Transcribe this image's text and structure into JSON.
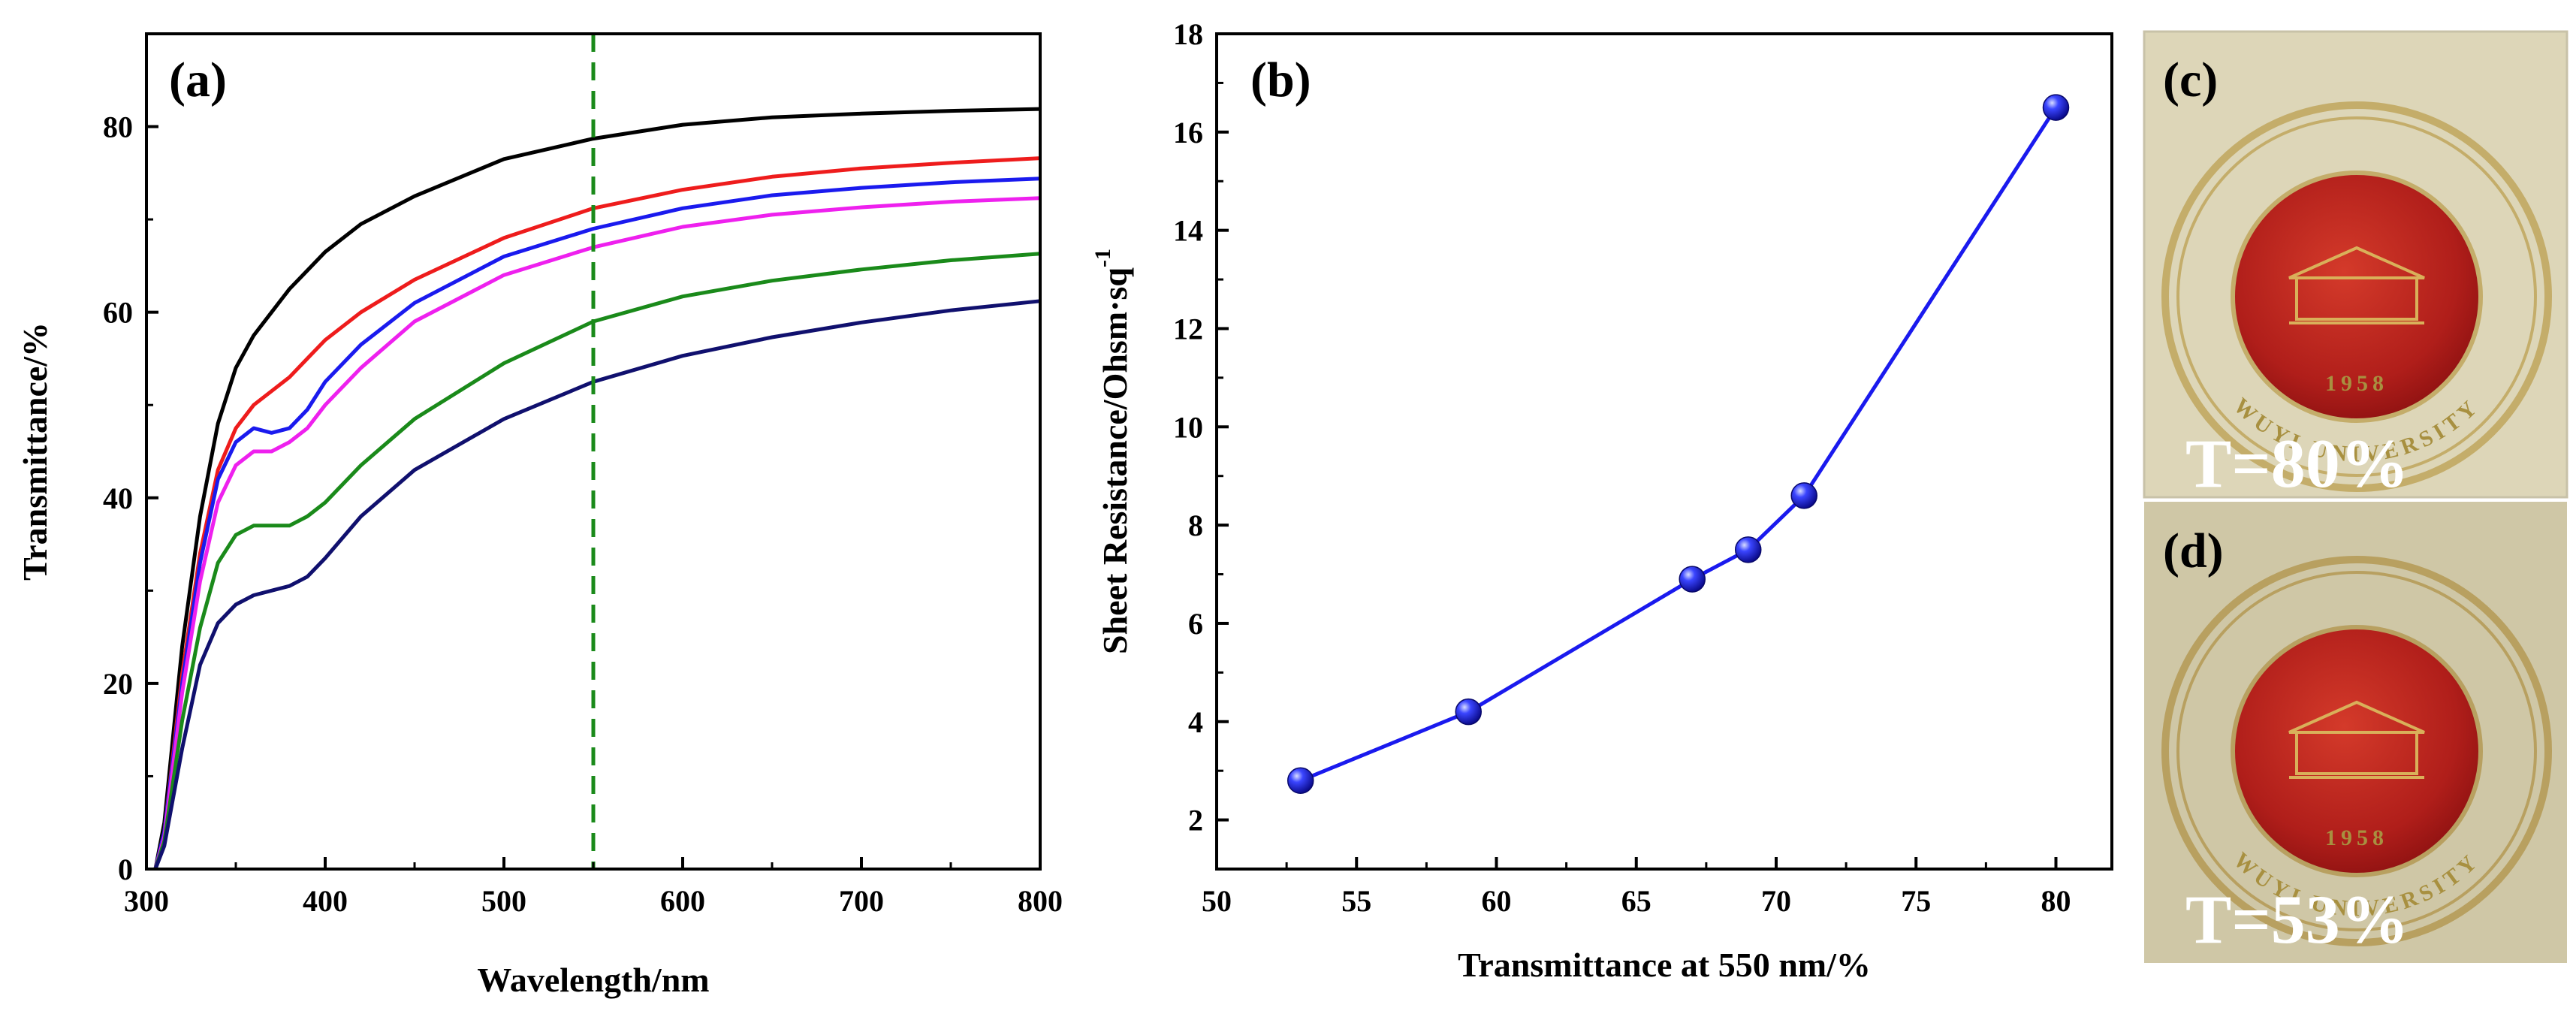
{
  "chart_data": [
    {
      "panel": "(a)",
      "type": "line",
      "xlabel": "Wavelength/nm",
      "ylabel": "Transmittance/%",
      "xlim": [
        300,
        800
      ],
      "ylim": [
        0,
        90
      ],
      "xticks": [
        300,
        400,
        500,
        600,
        700,
        800
      ],
      "yticks": [
        0,
        20,
        40,
        60,
        80
      ],
      "grid": false,
      "reference_line": {
        "x": 550,
        "style": "dashed",
        "color": "#1a8a1a"
      },
      "x": [
        305,
        310,
        320,
        330,
        340,
        350,
        360,
        370,
        380,
        390,
        400,
        420,
        450,
        500,
        550,
        600,
        650,
        700,
        750,
        800
      ],
      "series": [
        {
          "color": "#000000",
          "values": [
            0,
            5,
            24,
            38,
            48,
            54,
            57.5,
            60,
            62.5,
            64.5,
            66.5,
            69.5,
            72.5,
            76.5,
            78.7,
            80.2,
            81,
            81.4,
            81.7,
            81.9
          ]
        },
        {
          "color": "#ee1c1c",
          "values": [
            0,
            4,
            21,
            34,
            43,
            47.5,
            50,
            51.5,
            53,
            55,
            57,
            60,
            63.5,
            68,
            71.2,
            73.2,
            74.6,
            75.5,
            76.1,
            76.6
          ]
        },
        {
          "color": "#1a1aee",
          "values": [
            0,
            4,
            20,
            33,
            42,
            46,
            47.5,
            47,
            47.5,
            49.5,
            52.5,
            56.5,
            61,
            66,
            69,
            71.2,
            72.6,
            73.4,
            74,
            74.4
          ]
        },
        {
          "color": "#ee20ee",
          "values": [
            0,
            3.5,
            19,
            31,
            39.5,
            43.5,
            45,
            45,
            46,
            47.5,
            50,
            54,
            59,
            64,
            67,
            69.2,
            70.5,
            71.3,
            71.9,
            72.3
          ]
        },
        {
          "color": "#1a8a1a",
          "values": [
            0,
            3,
            16,
            26,
            33,
            36,
            37,
            37,
            37,
            38,
            39.5,
            43.5,
            48.5,
            54.5,
            59,
            61.7,
            63.4,
            64.6,
            65.6,
            66.3
          ]
        },
        {
          "color": "#10106e",
          "values": [
            0,
            2.5,
            13,
            22,
            26.5,
            28.5,
            29.5,
            30,
            30.5,
            31.5,
            33.5,
            38,
            43,
            48.5,
            52.5,
            55.3,
            57.3,
            58.9,
            60.2,
            61.2
          ]
        }
      ]
    },
    {
      "panel": "(b)",
      "type": "line",
      "xlabel": "Transmittance at 550 nm/%",
      "ylabel_main": "Sheet Resistance/Ohsm·sq",
      "ylabel_sup": "-1",
      "xlim": [
        50,
        82
      ],
      "ylim": [
        1,
        18
      ],
      "xticks": [
        50,
        55,
        60,
        65,
        70,
        75,
        80
      ],
      "yticks": [
        2,
        4,
        6,
        8,
        10,
        12,
        14,
        16,
        18
      ],
      "grid": false,
      "marker": "sphere",
      "color": "#1a1aee",
      "x": [
        53,
        59,
        67,
        69,
        71,
        80
      ],
      "y": [
        2.8,
        4.2,
        6.9,
        7.5,
        8.6,
        16.5
      ]
    }
  ],
  "photos": [
    {
      "label": "(c)",
      "caption": "T=80%",
      "seal_text": "WUYI UNIVERSITY",
      "seal_date": "1958"
    },
    {
      "label": "(d)",
      "caption": "T=53%",
      "seal_text": "WUYI UNIVERSITY",
      "seal_date": "1958"
    }
  ]
}
